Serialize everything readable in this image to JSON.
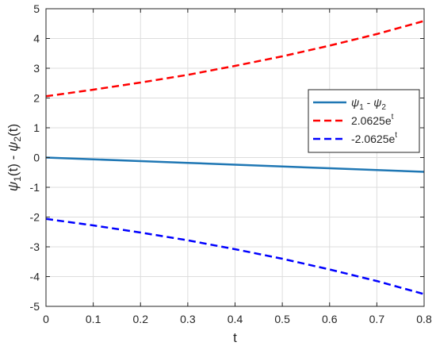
{
  "chart_data": {
    "type": "line",
    "xlabel": "t",
    "ylabel": {
      "segments": [
        {
          "text": "ψ",
          "style": "italic"
        },
        {
          "text": "1",
          "baseline": "sub"
        },
        {
          "text": "(t) - "
        },
        {
          "text": "ψ",
          "style": "italic"
        },
        {
          "text": "2",
          "baseline": "sub"
        },
        {
          "text": "(t)"
        }
      ]
    },
    "xlim": [
      0,
      0.8
    ],
    "ylim": [
      -5,
      5
    ],
    "xticks": [
      0,
      0.1,
      0.2,
      0.3,
      0.4,
      0.5,
      0.6,
      0.7,
      0.8
    ],
    "yticks": [
      -5,
      -4,
      -3,
      -2,
      -1,
      0,
      1,
      2,
      3,
      4,
      5
    ],
    "xtick_labels": [
      "0",
      "0.1",
      "0.2",
      "0.3",
      "0.4",
      "0.5",
      "0.6",
      "0.7",
      "0.8"
    ],
    "ytick_labels": [
      "-5",
      "-4",
      "-3",
      "-2",
      "-1",
      "0",
      "1",
      "2",
      "3",
      "4",
      "5"
    ],
    "grid": true,
    "legend_position": "upper-right",
    "series": [
      {
        "legend": [
          {
            "text": "ψ",
            "style": "italic"
          },
          {
            "text": "1",
            "baseline": "sub"
          },
          {
            "text": " - "
          },
          {
            "text": "ψ",
            "style": "italic"
          },
          {
            "text": "2",
            "baseline": "sub"
          }
        ],
        "color": "#1f77b4",
        "line_style": "solid",
        "x": [
          0,
          0.1,
          0.2,
          0.3,
          0.4,
          0.5,
          0.6,
          0.7,
          0.8
        ],
        "y": [
          0,
          -0.06,
          -0.12,
          -0.18,
          -0.24,
          -0.3,
          -0.36,
          -0.42,
          -0.48
        ]
      },
      {
        "legend": [
          {
            "text": "2.0625e"
          },
          {
            "text": "t",
            "baseline": "super"
          }
        ],
        "color": "#ff0000",
        "line_style": "dashed",
        "x": [
          0,
          0.1,
          0.2,
          0.3,
          0.4,
          0.5,
          0.6,
          0.7,
          0.8
        ],
        "y": [
          2.06,
          2.28,
          2.52,
          2.78,
          3.08,
          3.4,
          3.76,
          4.15,
          4.59
        ]
      },
      {
        "legend": [
          {
            "text": "-2.0625e"
          },
          {
            "text": "t",
            "baseline": "super"
          }
        ],
        "color": "#0000ff",
        "line_style": "dashed",
        "x": [
          0,
          0.1,
          0.2,
          0.3,
          0.4,
          0.5,
          0.6,
          0.7,
          0.8
        ],
        "y": [
          -2.06,
          -2.28,
          -2.52,
          -2.78,
          -3.08,
          -3.4,
          -3.76,
          -4.15,
          -4.59
        ]
      }
    ]
  }
}
